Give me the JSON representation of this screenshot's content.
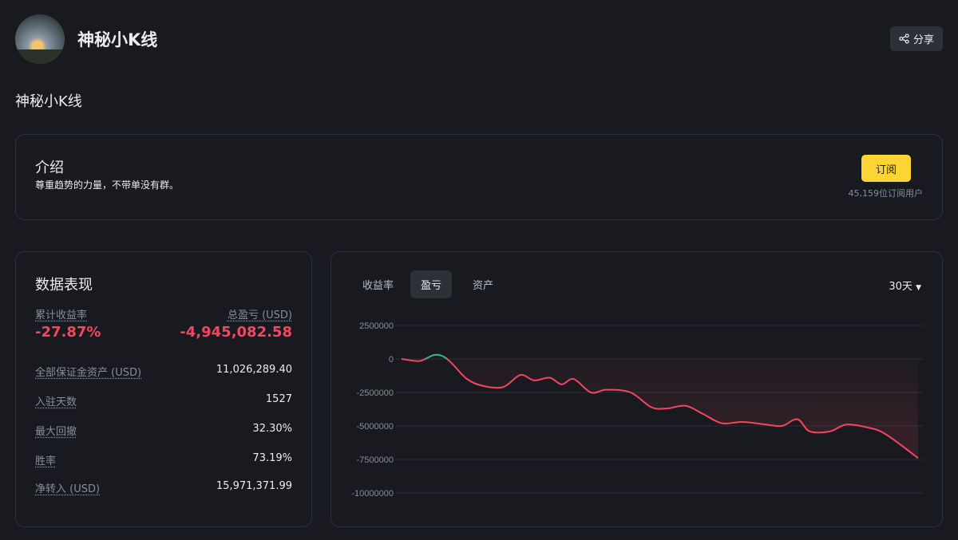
{
  "header": {
    "name": "神秘小K线",
    "share_label": "分享",
    "subname": "神秘小K线"
  },
  "intro": {
    "title": "介绍",
    "description": "尊重趋势的力量，不带单没有群。",
    "subscribe_label": "订阅",
    "subscribers": "45,159位订阅用户"
  },
  "performance": {
    "title": "数据表现",
    "roi_label": "累计收益率",
    "roi_value": "-27.87%",
    "pnl_label": "总盈亏 (USD)",
    "pnl_value": "-4,945,082.58",
    "rows": [
      {
        "label": "全部保证金资产 (USD)",
        "value": "11,026,289.40"
      },
      {
        "label": "入驻天数",
        "value": "1527"
      },
      {
        "label": "最大回撤",
        "value": "32.30%"
      },
      {
        "label": "胜率",
        "value": "73.19%"
      },
      {
        "label": "净转入 (USD)",
        "value": "15,971,371.99"
      }
    ]
  },
  "chart_tabs": [
    "收益率",
    "盈亏",
    "资产"
  ],
  "active_tab": "盈亏",
  "range": "30天",
  "colors": {
    "up": "#2ebd85",
    "down": "#f6465d",
    "accent": "#fcd535"
  },
  "chart_data": {
    "type": "line",
    "title": "盈亏",
    "x_unit": "day",
    "ylim": [
      -10000000,
      2500000
    ],
    "yticks": [
      "2500000",
      "0",
      "-2500000",
      "-5000000",
      "-7500000",
      "-10000000"
    ],
    "points": [
      [
        0,
        0
      ],
      [
        0.8,
        -150000
      ],
      [
        1.2,
        -100000
      ],
      [
        1.9,
        300000
      ],
      [
        2.4,
        200000
      ],
      [
        2.9,
        -300000
      ],
      [
        3.8,
        -1500000
      ],
      [
        4.7,
        -2000000
      ],
      [
        5.9,
        -2100000
      ],
      [
        6.9,
        -1200000
      ],
      [
        7.7,
        -1600000
      ],
      [
        8.6,
        -1400000
      ],
      [
        9.3,
        -1900000
      ],
      [
        10.0,
        -1500000
      ],
      [
        11.0,
        -2500000
      ],
      [
        11.9,
        -2300000
      ],
      [
        13.3,
        -2500000
      ],
      [
        14.5,
        -3600000
      ],
      [
        15.4,
        -3700000
      ],
      [
        16.5,
        -3500000
      ],
      [
        17.5,
        -4100000
      ],
      [
        18.6,
        -4800000
      ],
      [
        19.8,
        -4700000
      ],
      [
        21.2,
        -4900000
      ],
      [
        22.1,
        -5000000
      ],
      [
        23.0,
        -4500000
      ],
      [
        23.7,
        -5400000
      ],
      [
        24.9,
        -5400000
      ],
      [
        25.8,
        -4900000
      ],
      [
        27.0,
        -5100000
      ],
      [
        28.1,
        -5600000
      ],
      [
        30,
        -7400000
      ]
    ]
  }
}
